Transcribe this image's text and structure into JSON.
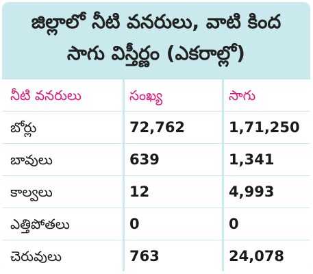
{
  "title": {
    "line1": "జిల్లాలో నీటి వనరులు, వాటి కింద",
    "line2": "సాగు విస్తీర్ణం (ఎకరాల్లో)"
  },
  "colors": {
    "card_background": "#c9e9ec",
    "header_text": "#e3157a",
    "row_background": "#ffffff"
  },
  "table": {
    "headers": [
      "నీటి వనరులు",
      "సంఖ్య",
      "సాగు"
    ],
    "rows": [
      [
        "బోర్లు",
        "72,762",
        "1,71,250"
      ],
      [
        "బావులు",
        "639",
        "1,341"
      ],
      [
        "కాల్వలు",
        "12",
        "4,993"
      ],
      [
        "ఎత్తిపోతలు",
        "0",
        "0"
      ],
      [
        "చెరువులు",
        "763",
        "24,078"
      ]
    ]
  }
}
